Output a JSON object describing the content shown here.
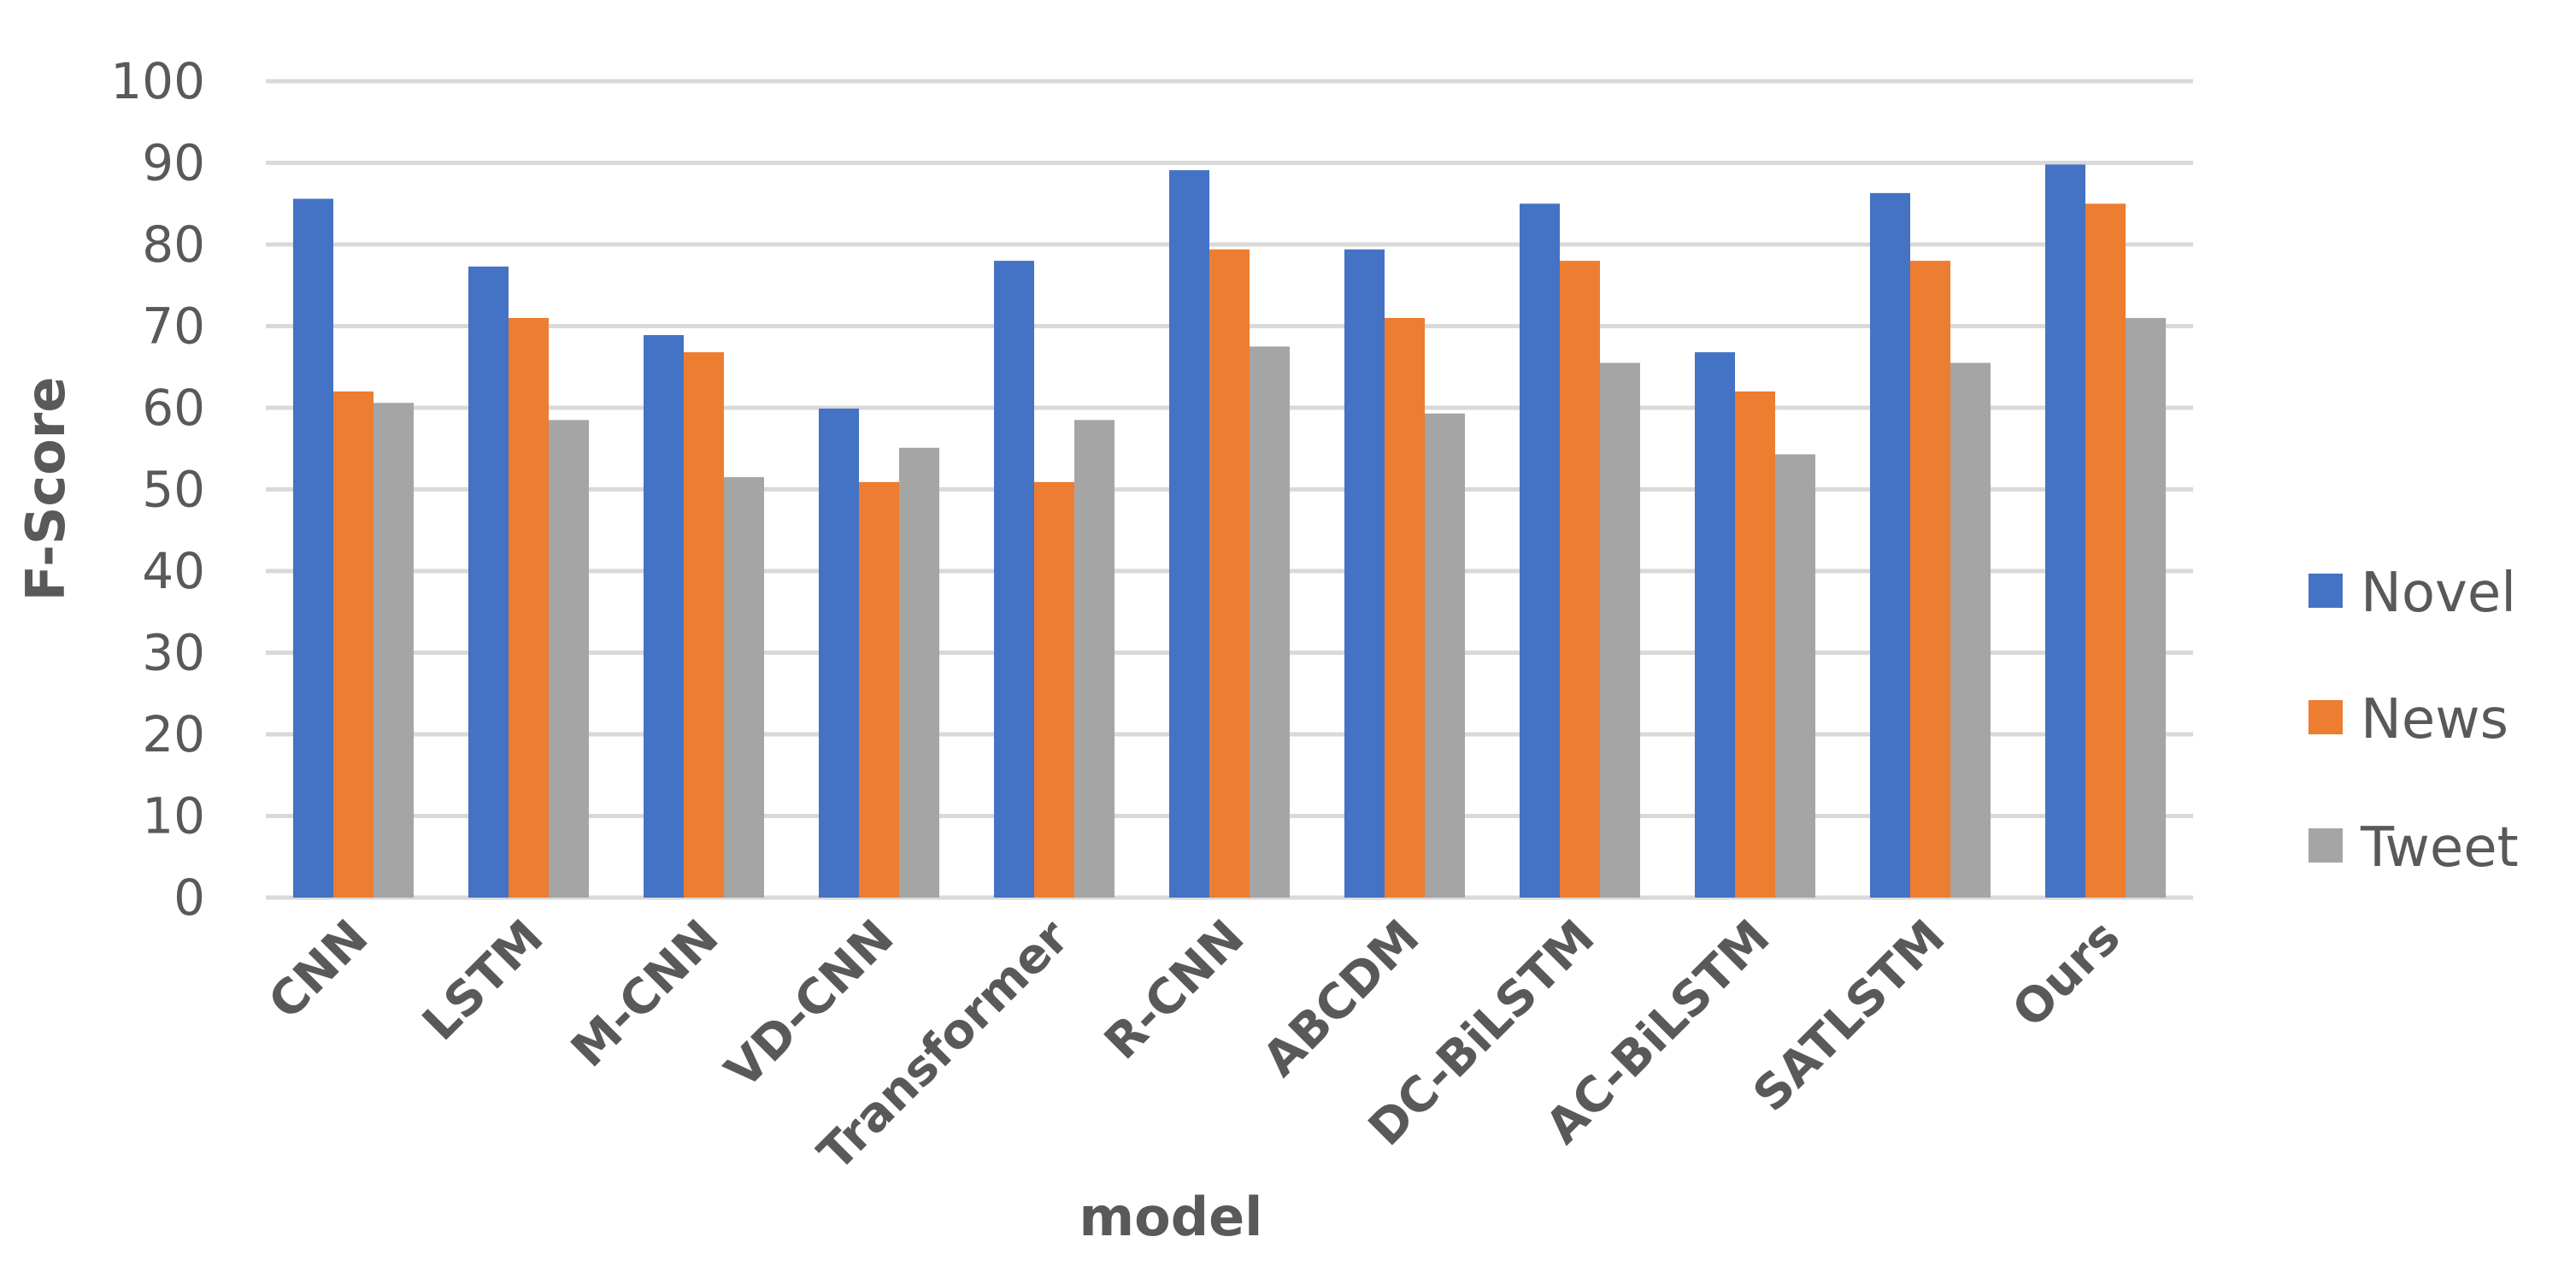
{
  "chart_data": {
    "type": "bar",
    "title": "",
    "xlabel": "model",
    "ylabel": "F-Score",
    "ylim": [
      0,
      100
    ],
    "yticks": [
      0,
      10,
      20,
      30,
      40,
      50,
      60,
      70,
      80,
      90,
      100
    ],
    "grid": true,
    "legend_position": "right",
    "categories": [
      "CNN",
      "LSTM",
      "M-CNN",
      "VD-CNN",
      "Transformer",
      "R-CNN",
      "ABCDM",
      "DC-BiLSTM",
      "AC-BiLSTM",
      "SATLSTM",
      "Ours"
    ],
    "series": [
      {
        "name": "Novel",
        "color": "#4472C4",
        "values": [
          85.6,
          77.3,
          68.9,
          59.9,
          78.0,
          89.1,
          79.4,
          85.0,
          66.8,
          86.3,
          89.8
        ]
      },
      {
        "name": "News",
        "color": "#ED7D31",
        "values": [
          62.0,
          71.0,
          66.8,
          50.9,
          50.9,
          79.4,
          71.0,
          78.0,
          62.0,
          78.0,
          85.0
        ]
      },
      {
        "name": "Tweet",
        "color": "#A5A5A5",
        "values": [
          60.6,
          58.5,
          51.5,
          55.1,
          58.5,
          67.5,
          59.3,
          65.5,
          54.3,
          65.5,
          71.0
        ]
      }
    ]
  }
}
